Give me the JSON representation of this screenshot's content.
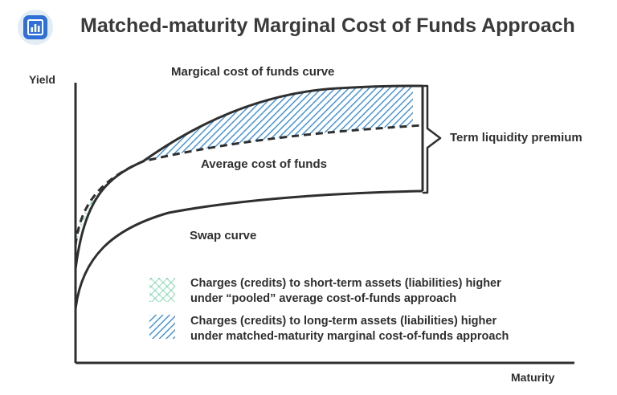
{
  "header": {
    "title": "Matched-maturity Marginal Cost of Funds Approach",
    "icon": "bar-chart-icon"
  },
  "axes": {
    "y_label": "Yield",
    "x_label": "Maturity"
  },
  "curves": {
    "marginal_label": "Margical cost of funds curve",
    "average_label": "Average cost of funds",
    "swap_label": "Swap curve",
    "premium_label": "Term liquidity premium"
  },
  "legend": {
    "short_term": {
      "line1": "Charges (credits) to short-term assets (liabilities) higher",
      "line2": "under “pooled” average cost-of-funds approach",
      "color": "#3fc48a"
    },
    "long_term": {
      "line1": "Charges (credits) to long-term assets (liabilities) higher",
      "line2": "under matched-maturity marginal cost-of-funds approach",
      "color": "#2f86d6"
    }
  },
  "colors": {
    "icon_bg": "#e3ebf5",
    "icon_fg": "#2f6fd6",
    "line": "#2f2f2f"
  }
}
